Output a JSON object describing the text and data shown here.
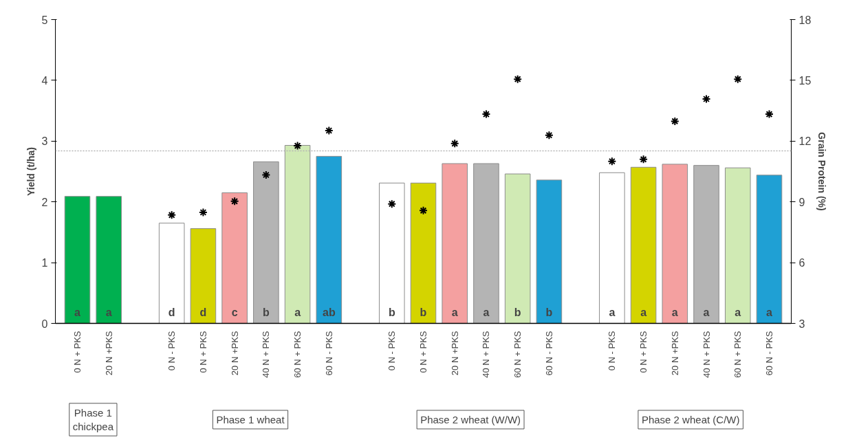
{
  "chart_data": {
    "type": "bar",
    "ylabel": "Yield (t/ha)",
    "y2label": "Grain Protein (%)",
    "categories": [
      "0 N + PKS",
      "20 N +PKS",
      null,
      "0 N - PKS",
      "0 N + PKS",
      "20 N +PKS",
      "40 N + PKS",
      "60 N + PKS",
      "60 N - PKS",
      null,
      "0 N - PKS",
      "0 N + PKS",
      "20 N +PKS",
      "40 N + PKS",
      "60 N + PKS",
      "60 N - PKS",
      null,
      "0 N - PKS",
      "0 N + PKS",
      "20 N +PKS",
      "40 N + PKS",
      "60 N + PKS",
      "60 N - PKS"
    ],
    "series": [
      {
        "colors": [
          "#00b050",
          "#00b050",
          null,
          "#ffffff",
          "#d4d400",
          "#f4a0a0",
          "#b4b4b4",
          "#d0eab4",
          "#1fa0d4",
          null,
          "#ffffff",
          "#d4d400",
          "#f4a0a0",
          "#b4b4b4",
          "#d0eab4",
          "#1fa0d4",
          null,
          "#ffffff",
          "#d4d400",
          "#f4a0a0",
          "#b4b4b4",
          "#d0eab4",
          "#1fa0d4"
        ],
        "values": [
          2.09,
          2.09,
          null,
          1.65,
          1.56,
          2.15,
          2.66,
          2.93,
          2.75,
          null,
          2.31,
          2.31,
          2.63,
          2.63,
          2.46,
          2.36,
          null,
          2.48,
          2.57,
          2.62,
          2.6,
          2.56,
          2.44
        ]
      },
      {
        "type": "scatter",
        "axis": "y2",
        "marker": "cross",
        "color": "#000000",
        "values": [
          null,
          null,
          null,
          8.35,
          8.48,
          9.03,
          10.33,
          11.77,
          12.52,
          null,
          8.9,
          8.57,
          11.88,
          13.33,
          15.06,
          12.29,
          null,
          11.0,
          11.1,
          12.98,
          14.08,
          15.06,
          13.33
        ]
      }
    ],
    "ylim": [
      0,
      5
    ],
    "yticks": [
      0,
      1,
      2,
      3,
      4,
      5
    ],
    "y2lim": [
      3,
      18
    ],
    "y2ticks": [
      3,
      6,
      9,
      12,
      15,
      18
    ],
    "grid": false,
    "ref_lines": [
      {
        "axis": "y",
        "value": 2.84,
        "color": "#b4b4b4",
        "line_style": "dotted"
      }
    ],
    "annotations": [
      "a",
      "a",
      "d",
      "d",
      "c",
      "b",
      "a",
      "ab",
      "b",
      "b",
      "a",
      "a",
      "b",
      "b",
      "a",
      "a",
      "a",
      "a",
      "a",
      "a",
      "Phase 1\nchickpea",
      "Phase 1 wheat",
      "Phase 2 wheat (W/W)",
      "Phase 2 wheat (C/W)"
    ]
  }
}
